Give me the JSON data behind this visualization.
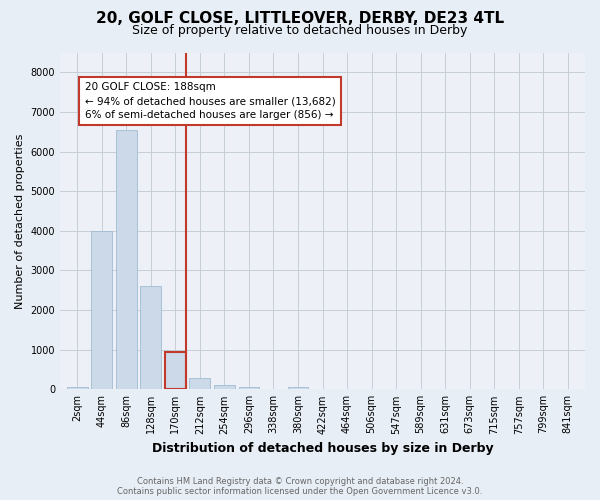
{
  "title": "20, GOLF CLOSE, LITTLEOVER, DERBY, DE23 4TL",
  "subtitle": "Size of property relative to detached houses in Derby",
  "xlabel": "Distribution of detached houses by size in Derby",
  "ylabel": "Number of detached properties",
  "bar_labels": [
    "2sqm",
    "44sqm",
    "86sqm",
    "128sqm",
    "170sqm",
    "212sqm",
    "254sqm",
    "296sqm",
    "338sqm",
    "380sqm",
    "422sqm",
    "464sqm",
    "506sqm",
    "547sqm",
    "589sqm",
    "631sqm",
    "673sqm",
    "715sqm",
    "757sqm",
    "799sqm",
    "841sqm"
  ],
  "bar_values": [
    50,
    4000,
    6550,
    2600,
    950,
    290,
    110,
    60,
    0,
    60,
    0,
    0,
    0,
    0,
    0,
    0,
    0,
    0,
    0,
    0,
    0
  ],
  "bar_color": "#ccd9e8",
  "bar_edge_color": "#a0bcd0",
  "highlight_bar_index": 4,
  "highlight_bar_edge_color": "#c0392b",
  "vline_color": "#c0392b",
  "ylim": [
    0,
    8500
  ],
  "yticks": [
    0,
    1000,
    2000,
    3000,
    4000,
    5000,
    6000,
    7000,
    8000
  ],
  "annotation_text": "20 GOLF CLOSE: 188sqm\n← 94% of detached houses are smaller (13,682)\n6% of semi-detached houses are larger (856) →",
  "annotation_box_facecolor": "#ffffff",
  "annotation_box_edgecolor": "#c0392b",
  "footer_text": "Contains HM Land Registry data © Crown copyright and database right 2024.\nContains public sector information licensed under the Open Government Licence v3.0.",
  "background_color": "#e8eef5",
  "plot_background_color": "#edf1f7",
  "grid_color": "#c5cdd8",
  "title_fontsize": 11,
  "subtitle_fontsize": 9,
  "ylabel_fontsize": 8,
  "xlabel_fontsize": 9,
  "tick_fontsize": 7,
  "footer_fontsize": 6
}
